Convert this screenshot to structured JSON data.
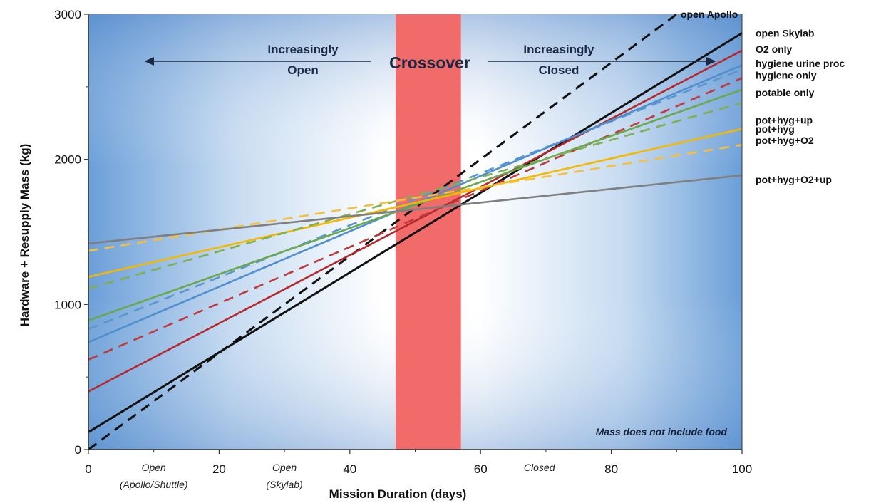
{
  "chart_data": {
    "type": "line",
    "title": "",
    "xlabel": "Mission Duration (days)",
    "ylabel": "Hardware + Resupply Mass (kg)",
    "xlim": [
      0,
      100
    ],
    "ylim": [
      0,
      3000
    ],
    "x_ticks": [
      0,
      20,
      40,
      60,
      80,
      100
    ],
    "y_ticks": [
      0,
      1000,
      2000,
      3000
    ],
    "grid": false,
    "crossover": {
      "label": "Crossover",
      "x_range": [
        47,
        57
      ],
      "color": "#f26b6b"
    },
    "regions": {
      "left_label": [
        "Increasingly",
        "Open"
      ],
      "right_label": [
        "Increasingly",
        "Closed"
      ]
    },
    "mode_labels": [
      {
        "x": 10,
        "lines": [
          "Open",
          "(Apollo/Shuttle)"
        ]
      },
      {
        "x": 30,
        "lines": [
          "Open",
          "(Skylab)"
        ]
      },
      {
        "x": 69,
        "lines": [
          "Closed"
        ]
      }
    ],
    "note": "Mass does not include food",
    "series": [
      {
        "name": "open Apollo",
        "color": "#111111",
        "dash": true,
        "x": [
          0,
          90
        ],
        "y": [
          0,
          3000
        ],
        "label_y": 3000
      },
      {
        "name": "open Skylab",
        "color": "#111111",
        "dash": false,
        "x": [
          0,
          100
        ],
        "y": [
          120,
          2870
        ],
        "label_y": 2870
      },
      {
        "name": "O2 only",
        "color": "#b5292e",
        "dash": false,
        "x": [
          0,
          100
        ],
        "y": [
          400,
          2750
        ],
        "label_y": 2760
      },
      {
        "name": "hygiene urine proc",
        "color": "#5b96cf",
        "dash": true,
        "x": [
          0,
          100
        ],
        "y": [
          830,
          2620
        ],
        "label_y": 2660
      },
      {
        "name": "hygiene only",
        "color": "#4f8fd0",
        "dash": false,
        "x": [
          0,
          100
        ],
        "y": [
          740,
          2650
        ],
        "label_y": 2580
      },
      {
        "name": "",
        "color": "#c0393c",
        "dash": true,
        "x": [
          0,
          100
        ],
        "y": [
          620,
          2560
        ],
        "label_y": null
      },
      {
        "name": "potable only",
        "color": "#6aa84f",
        "dash": false,
        "x": [
          0,
          100
        ],
        "y": [
          890,
          2480
        ],
        "label_y": 2460
      },
      {
        "name": "pot+hyg+up",
        "color": "#f5b800",
        "dash": false,
        "x": [
          0,
          100
        ],
        "y": [
          1190,
          2210
        ],
        "label_y": 2270
      },
      {
        "name": "pot+hyg",
        "color": "#7fae55",
        "dash": true,
        "x": [
          0,
          100
        ],
        "y": [
          1110,
          2390
        ],
        "label_y": 2210
      },
      {
        "name": "pot+hyg+O2",
        "color": "#f5c040",
        "dash": true,
        "x": [
          0,
          100
        ],
        "y": [
          1370,
          2100
        ],
        "label_y": 2130
      },
      {
        "name": "pot+hyg+O2+up",
        "color": "#7f7f7f",
        "dash": false,
        "x": [
          0,
          100
        ],
        "y": [
          1420,
          1890
        ],
        "label_y": 1860
      }
    ]
  }
}
